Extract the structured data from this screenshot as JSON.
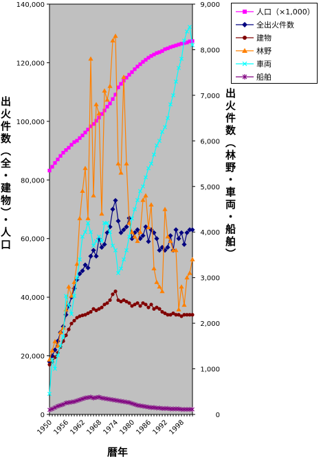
{
  "chart_data": {
    "type": "line",
    "xlabel": "暦年",
    "ylabel_left": "出火件数（全・建物）・人口",
    "ylabel_right": "出火件数（林野・車両・船舶）",
    "x": [
      1950,
      1951,
      1952,
      1953,
      1954,
      1955,
      1956,
      1957,
      1958,
      1959,
      1960,
      1961,
      1962,
      1963,
      1964,
      1965,
      1966,
      1967,
      1968,
      1969,
      1970,
      1971,
      1972,
      1973,
      1974,
      1975,
      1976,
      1977,
      1978,
      1979,
      1980,
      1981,
      1982,
      1983,
      1984,
      1985,
      1986,
      1987,
      1988,
      1989,
      1990,
      1991,
      1992,
      1993,
      1994,
      1995,
      1996,
      1997,
      1998,
      1999,
      2000,
      2001,
      2002
    ],
    "x_ticks": [
      "1950",
      "1956",
      "1962",
      "1968",
      "1974",
      "1980",
      "1986",
      "1992",
      "1998"
    ],
    "y_left_ticks": [
      "0",
      "20,000",
      "40,000",
      "60,000",
      "80,000",
      "100,000",
      "120,000",
      "140,000"
    ],
    "y_right_ticks": [
      "0",
      "1,000",
      "2,000",
      "3,000",
      "4,000",
      "5,000",
      "6,000",
      "7,000",
      "8,000",
      "9,000"
    ],
    "ylim_left": [
      0,
      140000
    ],
    "ylim_right": [
      0,
      9000
    ],
    "plot_background": "#c0c0c0",
    "series": [
      {
        "name": "人口（×1,000）",
        "axis": "left",
        "color": "#ff00ff",
        "marker": "square",
        "values": [
          83200,
          84500,
          85800,
          87000,
          88200,
          89300,
          90200,
          91000,
          92000,
          92900,
          93400,
          94300,
          95200,
          96200,
          97200,
          98300,
          99100,
          100200,
          101300,
          102500,
          103700,
          105000,
          106100,
          107600,
          109100,
          111600,
          112800,
          113900,
          114900,
          115900,
          116800,
          117800,
          118700,
          119500,
          120300,
          121000,
          121700,
          122300,
          122800,
          123300,
          123600,
          124000,
          124600,
          124900,
          125300,
          125600,
          125900,
          126200,
          126500,
          126700,
          126900,
          127300,
          127400
        ]
      },
      {
        "name": "全出火件数",
        "axis": "left",
        "color": "#000080",
        "marker": "diamond",
        "values": [
          18000,
          20000,
          22000,
          25000,
          28000,
          30000,
          34000,
          37000,
          40000,
          43000,
          46000,
          48000,
          49000,
          51000,
          50000,
          54000,
          56000,
          54000,
          60000,
          57000,
          58000,
          62000,
          64000,
          70000,
          73000,
          66000,
          62000,
          63000,
          64000,
          67000,
          60000,
          62000,
          63000,
          60000,
          61000,
          64000,
          59000,
          63000,
          62000,
          60000,
          56000,
          57000,
          56000,
          57000,
          61000,
          56000,
          63000,
          60000,
          62000,
          58000,
          62000,
          63000,
          63000
        ]
      },
      {
        "name": "建物",
        "axis": "left",
        "color": "#800000",
        "marker": "circle",
        "values": [
          17000,
          18000,
          19500,
          21000,
          23000,
          25000,
          27000,
          29000,
          31000,
          32000,
          33000,
          33500,
          33800,
          34000,
          34500,
          35000,
          36000,
          35500,
          36000,
          36500,
          37500,
          38000,
          39000,
          41000,
          42000,
          39000,
          38500,
          39000,
          38500,
          38000,
          37000,
          37500,
          38000,
          37000,
          38000,
          37500,
          36500,
          37500,
          36000,
          36500,
          36000,
          35000,
          34500,
          34000,
          34000,
          34500,
          34000,
          34000,
          33500,
          34000,
          34000,
          34000,
          34000
        ]
      },
      {
        "name": "林野",
        "axis": "right",
        "color": "#ff8000",
        "marker": "triangle",
        "values": [
          1200,
          1400,
          1600,
          1500,
          1800,
          1900,
          2300,
          2800,
          2600,
          2900,
          3300,
          4300,
          4900,
          5400,
          4300,
          7800,
          4800,
          6800,
          6600,
          4400,
          7100,
          6900,
          7200,
          8200,
          8300,
          5500,
          5300,
          7400,
          5500,
          4200,
          4000,
          3900,
          3800,
          4000,
          4700,
          4800,
          4100,
          4600,
          3200,
          2900,
          2800,
          2700,
          4500,
          3900,
          3800,
          3600,
          3600,
          2300,
          2800,
          2400,
          3000,
          3100,
          3400
        ]
      },
      {
        "name": "車両",
        "axis": "right",
        "color": "#00ffff",
        "marker": "x",
        "values": [
          450,
          1200,
          1000,
          1300,
          1500,
          1700,
          2600,
          2400,
          2200,
          2600,
          3000,
          3400,
          3900,
          4000,
          4200,
          4000,
          3700,
          3800,
          3900,
          3800,
          4200,
          4200,
          4000,
          3700,
          3600,
          3100,
          3200,
          3400,
          3600,
          3900,
          4300,
          4500,
          4700,
          4900,
          5000,
          5200,
          5400,
          5500,
          5700,
          5900,
          6000,
          6200,
          6300,
          6500,
          6800,
          7000,
          7300,
          7600,
          7800,
          8200,
          8400,
          8500,
          8100
        ]
      },
      {
        "name": "船舶",
        "axis": "right",
        "color": "#800080",
        "marker": "star",
        "values": [
          100,
          120,
          150,
          180,
          200,
          220,
          250,
          260,
          270,
          280,
          300,
          320,
          340,
          360,
          370,
          380,
          360,
          370,
          380,
          360,
          350,
          340,
          330,
          320,
          310,
          300,
          290,
          280,
          270,
          260,
          240,
          220,
          200,
          190,
          180,
          170,
          160,
          150,
          150,
          140,
          140,
          130,
          130,
          130,
          120,
          120,
          120,
          120,
          110,
          110,
          110,
          110,
          110
        ]
      }
    ]
  }
}
